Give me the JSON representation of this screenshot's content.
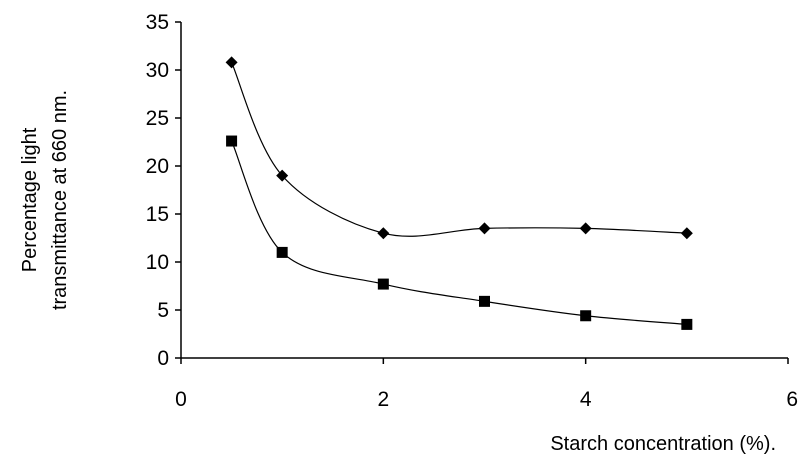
{
  "chart_data": {
    "type": "scatter",
    "title": "",
    "xlabel": "Starch concentration (%).",
    "ylabel_lines": [
      "Percentage light",
      "transmittance at 660 nm."
    ],
    "xlim": [
      0,
      6
    ],
    "ylim": [
      0,
      35
    ],
    "x_ticks": [
      0,
      2,
      4,
      6
    ],
    "y_ticks": [
      0,
      5,
      10,
      15,
      20,
      25,
      30,
      35
    ],
    "grid": false,
    "legend": "none",
    "line_style": "smoothed",
    "series": [
      {
        "marker": "diamond",
        "color": "#000000",
        "x": [
          0.5,
          1,
          2,
          3,
          4,
          5
        ],
        "y": [
          30.8,
          19,
          13,
          13.5,
          13.5,
          13
        ]
      },
      {
        "marker": "square",
        "color": "#000000",
        "x": [
          0.5,
          1,
          2,
          3,
          4,
          5
        ],
        "y": [
          22.6,
          11,
          7.7,
          5.9,
          4.4,
          3.5
        ]
      }
    ]
  }
}
